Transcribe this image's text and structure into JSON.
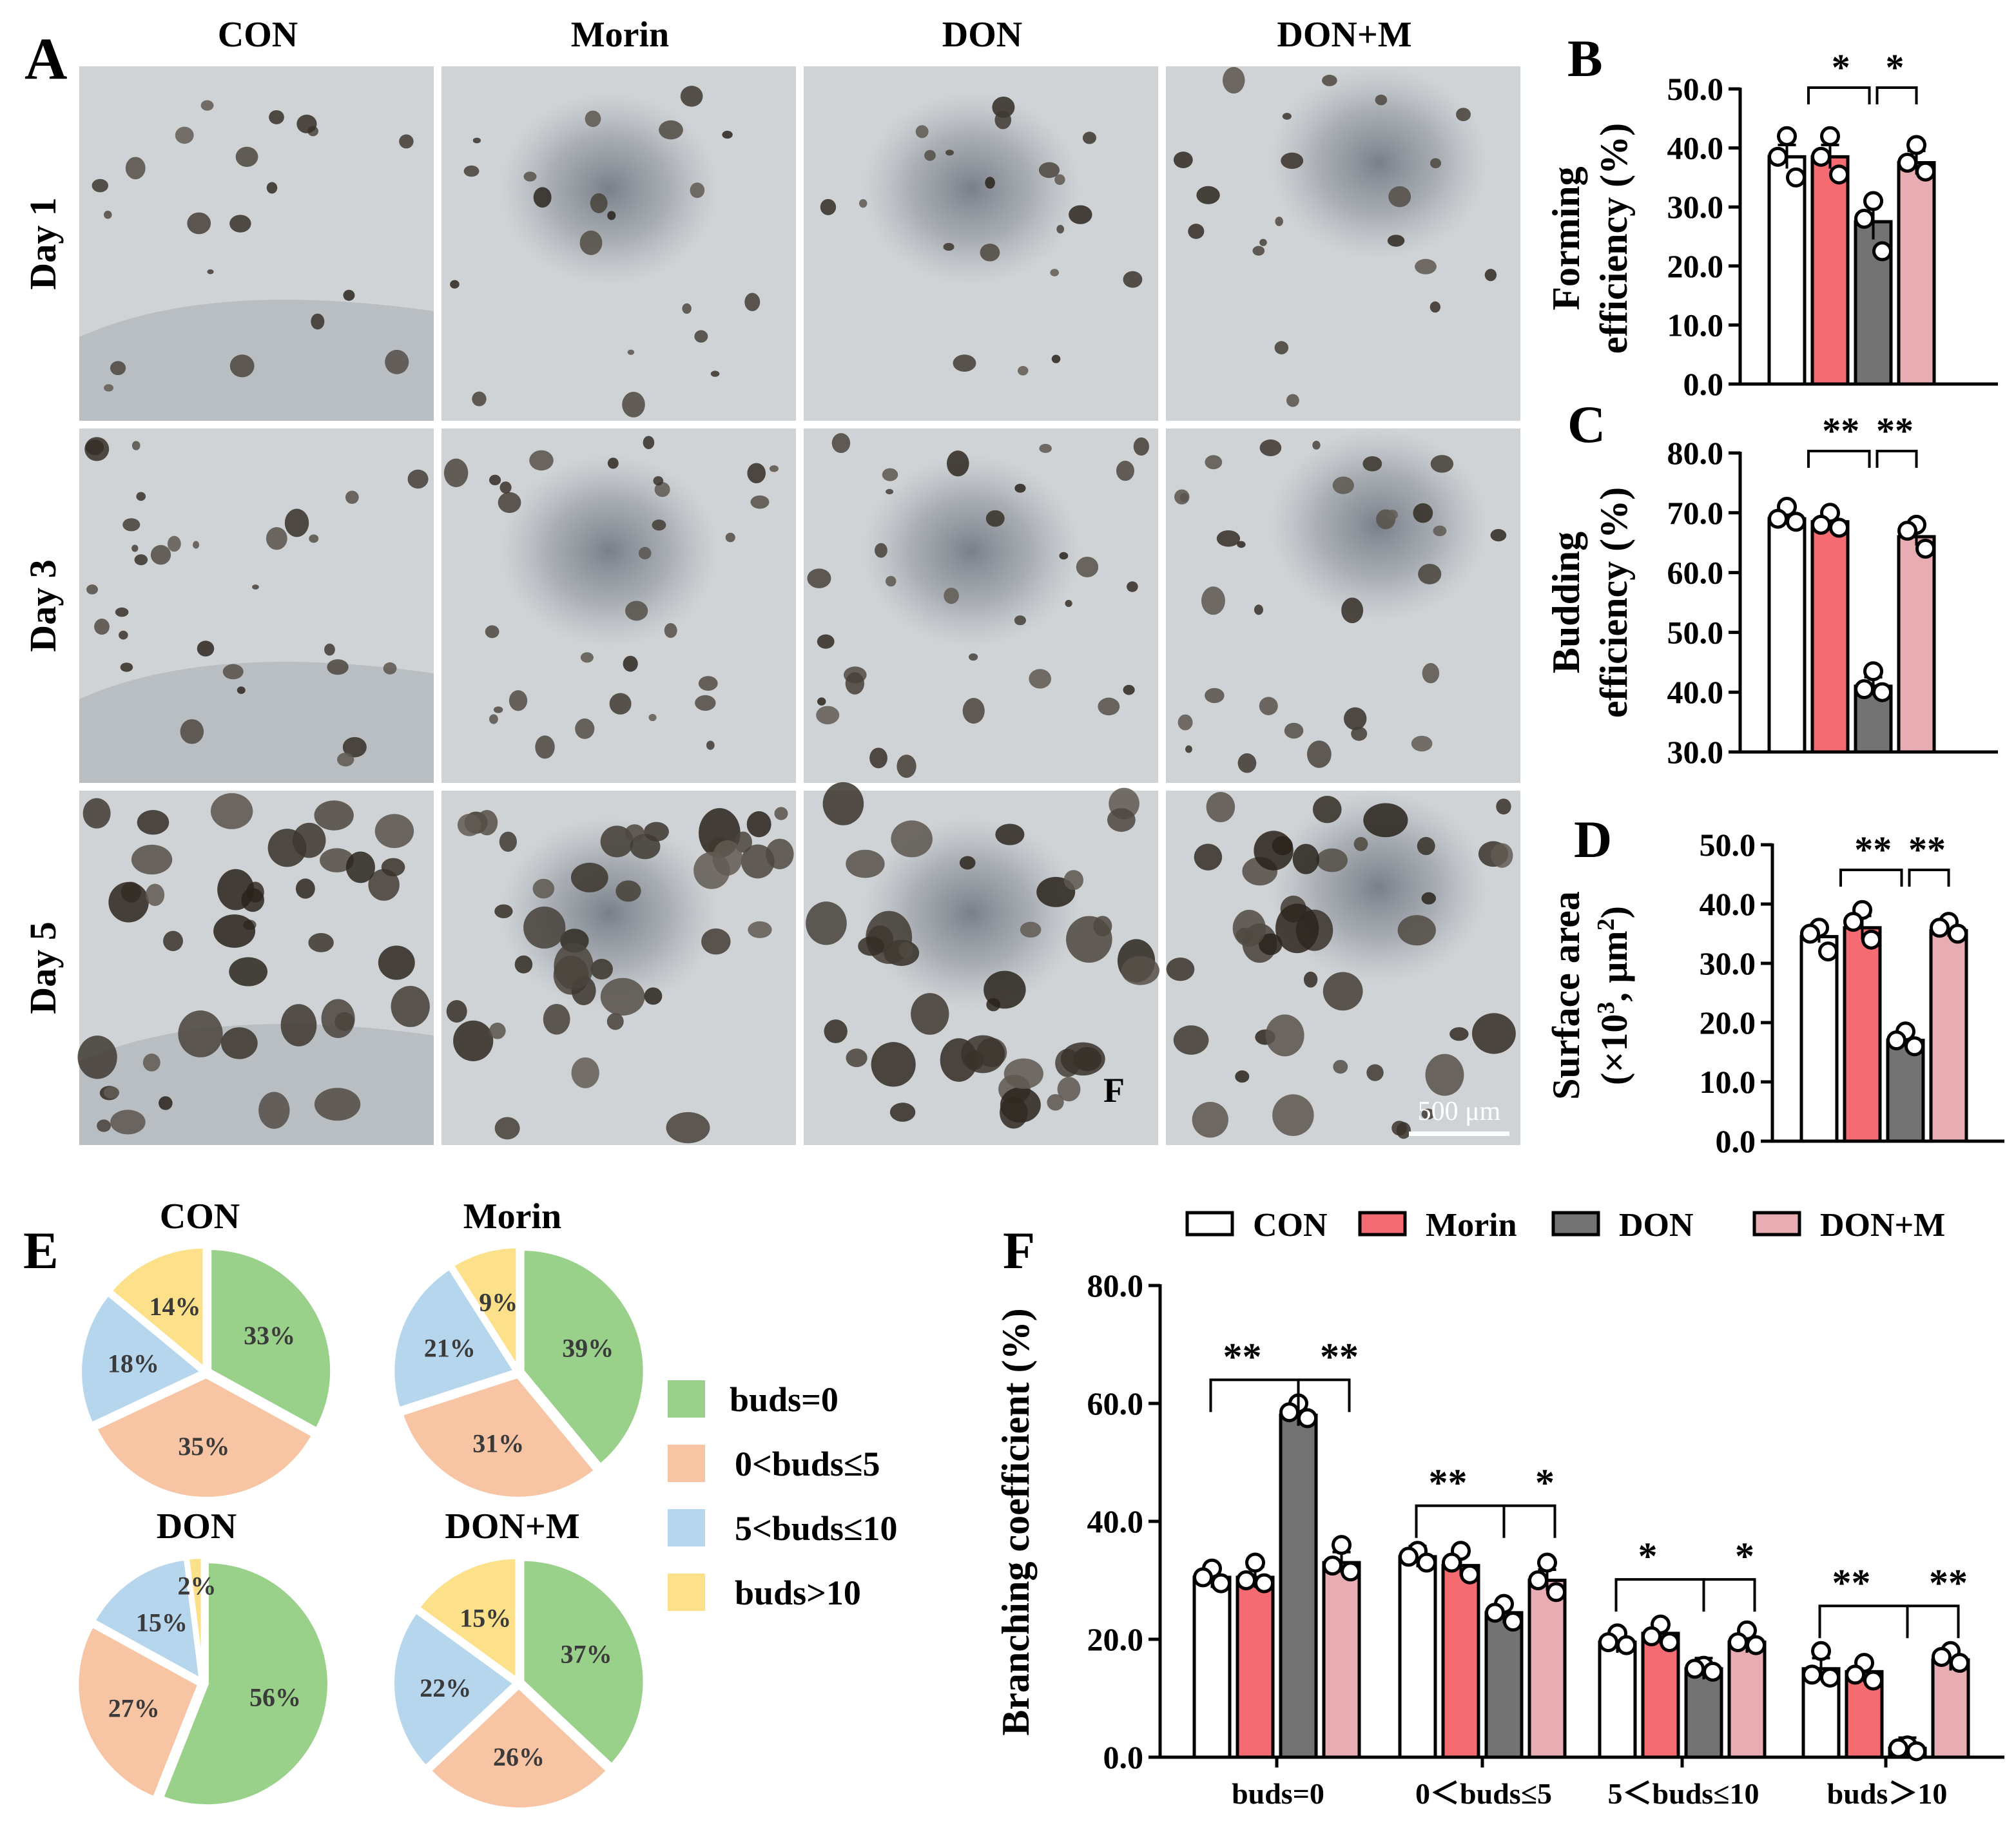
{
  "colors": {
    "CON": "#ffffff",
    "Morin": "#f46b72",
    "DON": "#737373",
    "DON+M": "#e8adb2",
    "buds=0": "#99d18a",
    "0<buds≤5": "#f7c4a4",
    "5<buds≤10": "#b6d6ee",
    "buds>10": "#fce08a"
  },
  "panel_a": {
    "label": "A",
    "columns": [
      "CON",
      "Morin",
      "DON",
      "DON+M"
    ],
    "rows": [
      "Day 1",
      "Day 3",
      "Day 5"
    ],
    "inset_label": "F",
    "scale_bar": "500 μm"
  },
  "chart_data": [
    {
      "id": "B",
      "type": "bar",
      "panel_label": "B",
      "ylabel_lines": [
        "Forming",
        "efficiency (%)"
      ],
      "categories": [
        "CON",
        "Morin",
        "DON",
        "DON+M"
      ],
      "values": [
        38.5,
        38.5,
        27.5,
        37.5
      ],
      "errors": [
        2.0,
        2.0,
        3.0,
        2.0
      ],
      "points": [
        [
          42,
          38.5,
          35
        ],
        [
          42,
          38.5,
          35.5
        ],
        [
          31,
          28,
          22.5
        ],
        [
          40.5,
          37.5,
          36
        ]
      ],
      "ylim": [
        0,
        50
      ],
      "yticks": [
        "0.0",
        "10.0",
        "20.0",
        "30.0",
        "40.0",
        "50.0"
      ],
      "significance": [
        "*",
        "*"
      ]
    },
    {
      "id": "C",
      "type": "bar",
      "panel_label": "C",
      "ylabel_lines": [
        "Budding",
        "efficiency (%)"
      ],
      "categories": [
        "CON",
        "Morin",
        "DON",
        "DON+M"
      ],
      "values": [
        69.0,
        68.5,
        41.0,
        66.0
      ],
      "errors": [
        1.0,
        1.0,
        1.5,
        1.5
      ],
      "points": [
        [
          71,
          69,
          68.5
        ],
        [
          70,
          68,
          67.5
        ],
        [
          43.5,
          40.5,
          40
        ],
        [
          68,
          67,
          64
        ]
      ],
      "ylim": [
        30,
        80
      ],
      "yticks": [
        "30.0",
        "40.0",
        "50.0",
        "60.0",
        "70.0",
        "80.0"
      ],
      "significance": [
        "**",
        "**"
      ]
    },
    {
      "id": "D",
      "type": "bar",
      "panel_label": "D",
      "ylabel_lines": [
        "Surface area",
        "(×10",
        "3",
        ", μm",
        "2",
        ")"
      ],
      "categories": [
        "CON",
        "Morin",
        "DON",
        "DON+M"
      ],
      "values": [
        34.5,
        36.0,
        17.0,
        35.5
      ],
      "errors": [
        1.0,
        2.0,
        1.0,
        1.0
      ],
      "points": [
        [
          36,
          35,
          32
        ],
        [
          39,
          37,
          34
        ],
        [
          18.5,
          17,
          16
        ],
        [
          37,
          36,
          35
        ]
      ],
      "ylim": [
        0,
        50
      ],
      "yticks": [
        "0.0",
        "10.0",
        "20.0",
        "30.0",
        "40.0",
        "50.0"
      ],
      "significance": [
        "**",
        "**"
      ]
    },
    {
      "id": "E",
      "type": "pie",
      "panel_label": "E",
      "legend": [
        "buds=0",
        "0<buds≤5",
        "5<buds≤10",
        "buds>10"
      ],
      "pies": [
        {
          "title": "CON",
          "values": [
            33,
            35,
            18,
            14
          ],
          "labels": [
            "33%",
            "35%",
            "18%",
            "14%"
          ]
        },
        {
          "title": "Morin",
          "values": [
            39,
            31,
            21,
            9
          ],
          "labels": [
            "39%",
            "31%",
            "21%",
            "9%"
          ]
        },
        {
          "title": "DON",
          "values": [
            56,
            27,
            15,
            2
          ],
          "labels": [
            "56%",
            "27%",
            "15%",
            "2%"
          ]
        },
        {
          "title": "DON+M",
          "values": [
            37,
            26,
            22,
            15
          ],
          "labels": [
            "37%",
            "26%",
            "22%",
            "15%"
          ]
        }
      ]
    },
    {
      "id": "F",
      "type": "bar",
      "panel_label": "F",
      "ylabel": "Branching coefficient (%)",
      "categories": [
        "buds=0",
        "0＜buds≤5",
        "5＜buds≤10",
        "buds＞10"
      ],
      "legend": [
        "CON",
        "Morin",
        "DON",
        "DON+M"
      ],
      "series": [
        {
          "name": "CON",
          "values": [
            30.5,
            34.0,
            19.5,
            15.0
          ],
          "points": [
            [
              32,
              30.5,
              29.5
            ],
            [
              35,
              34,
              33
            ],
            [
              21,
              19.5,
              19
            ],
            [
              18,
              14,
              13.5
            ]
          ]
        },
        {
          "name": "Morin",
          "values": [
            30.5,
            32.5,
            21.0,
            14.5
          ],
          "points": [
            [
              33,
              30,
              29.5
            ],
            [
              35,
              33,
              31
            ],
            [
              22.5,
              20.5,
              19.5
            ],
            [
              16,
              14,
              13
            ]
          ]
        },
        {
          "name": "DON",
          "values": [
            58.0,
            24.5,
            15.0,
            1.5
          ],
          "points": [
            [
              60,
              58.5,
              57.5
            ],
            [
              26,
              24.5,
              23
            ],
            [
              15.5,
              15,
              14.5
            ],
            [
              2,
              1.5,
              1
            ]
          ]
        },
        {
          "name": "DON+M",
          "values": [
            33.0,
            30.0,
            19.5,
            16.5
          ],
          "points": [
            [
              36,
              32.5,
              31.5
            ],
            [
              33,
              30,
              28
            ],
            [
              21.5,
              19.5,
              19
            ],
            [
              18,
              17,
              16
            ]
          ]
        }
      ],
      "ylim": [
        0,
        80
      ],
      "yticks": [
        "0.0",
        "20.0",
        "40.0",
        "60.0",
        "80.0"
      ],
      "significance": [
        [
          "**",
          "**"
        ],
        [
          "**",
          "*"
        ],
        [
          "*",
          "*"
        ],
        [
          "**",
          "**"
        ]
      ]
    }
  ]
}
